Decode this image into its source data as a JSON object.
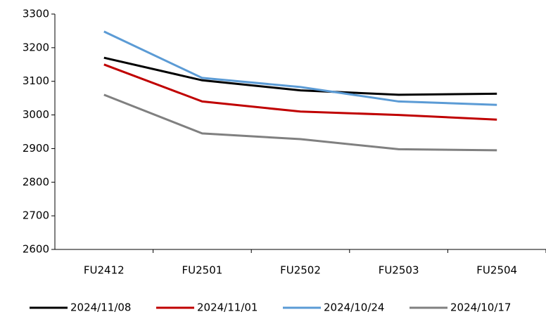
{
  "chart_data": {
    "type": "line",
    "categories": [
      "FU2412",
      "FU2501",
      "FU2502",
      "FU2503",
      "FU2504"
    ],
    "series": [
      {
        "name": "2024/11/08",
        "color": "#000000",
        "values": [
          3170,
          3103,
          3073,
          3060,
          3063
        ]
      },
      {
        "name": "2024/11/01",
        "color": "#c00000",
        "values": [
          3150,
          3040,
          3010,
          3000,
          2986
        ]
      },
      {
        "name": "2024/10/24",
        "color": "#5b9bd5",
        "values": [
          3248,
          3110,
          3083,
          3040,
          3030
        ]
      },
      {
        "name": "2024/10/17",
        "color": "#808080",
        "values": [
          3060,
          2945,
          2928,
          2898,
          2895
        ]
      }
    ],
    "ylim": [
      2600,
      3300
    ],
    "yticks": [
      2600,
      2700,
      2800,
      2900,
      3000,
      3100,
      3200,
      3300
    ],
    "grid": false,
    "legend": "bottom"
  }
}
